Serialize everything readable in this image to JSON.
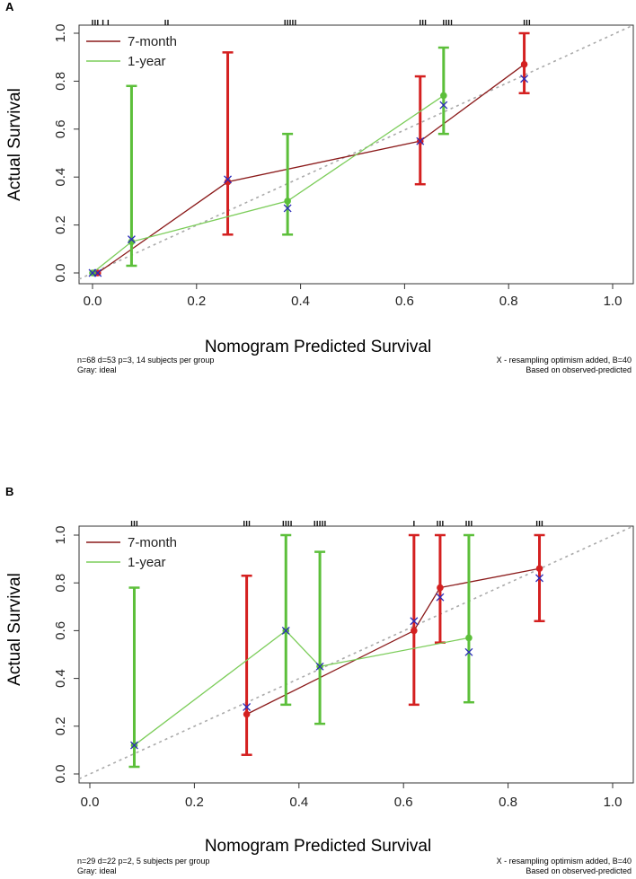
{
  "chart_data": [
    {
      "panel": "A",
      "type": "line",
      "xlabel": "Nomogram Predicted Survival",
      "ylabel": "Actual Survival",
      "xlim": [
        0.0,
        1.0
      ],
      "ylim": [
        0.0,
        1.0
      ],
      "xticks": [
        "0.0",
        "0.2",
        "0.4",
        "0.6",
        "0.8",
        "1.0"
      ],
      "yticks": [
        "0.0",
        "0.2",
        "0.4",
        "0.6",
        "0.8",
        "1.0"
      ],
      "legend": [
        "7-month",
        "1-year"
      ],
      "note_left": [
        "n=68 d=53 p=3, 14 subjects per group",
        "Gray: ideal"
      ],
      "note_right": [
        "X - resampling optimism added, B=40",
        "Based on observed-predicted"
      ],
      "rug_x": [
        0.0,
        0.005,
        0.01,
        0.02,
        0.03,
        0.14,
        0.145,
        0.37,
        0.375,
        0.38,
        0.385,
        0.39,
        0.63,
        0.635,
        0.64,
        0.675,
        0.68,
        0.685,
        0.69,
        0.83,
        0.835,
        0.84
      ],
      "series": [
        {
          "name": "7-month",
          "color": "#8b1a1a",
          "errcolor": "#d42020",
          "points": [
            {
              "x": 0.01,
              "y": 0.0,
              "lo": 0.0,
              "hi": 0.0,
              "adj": 0.0
            },
            {
              "x": 0.26,
              "y": 0.38,
              "lo": 0.16,
              "hi": 0.92,
              "adj": 0.39
            },
            {
              "x": 0.63,
              "y": 0.55,
              "lo": 0.37,
              "hi": 0.82,
              "adj": 0.55
            },
            {
              "x": 0.83,
              "y": 0.87,
              "lo": 0.75,
              "hi": 1.0,
              "adj": 0.81
            }
          ]
        },
        {
          "name": "1-year",
          "color": "#7ccd5a",
          "errcolor": "#5cbf3a",
          "points": [
            {
              "x": 0.0,
              "y": 0.0,
              "lo": 0.0,
              "hi": 0.0,
              "adj": 0.0
            },
            {
              "x": 0.075,
              "y": 0.13,
              "lo": 0.03,
              "hi": 0.78,
              "adj": 0.14
            },
            {
              "x": 0.375,
              "y": 0.3,
              "lo": 0.16,
              "hi": 0.58,
              "adj": 0.27
            },
            {
              "x": 0.675,
              "y": 0.74,
              "lo": 0.58,
              "hi": 0.94,
              "adj": 0.7
            }
          ]
        }
      ]
    },
    {
      "panel": "B",
      "type": "line",
      "xlabel": "Nomogram Predicted Survival",
      "ylabel": "Actual Survival",
      "xlim": [
        0.0,
        1.0
      ],
      "ylim": [
        0.0,
        1.0
      ],
      "xticks": [
        "0.0",
        "0.2",
        "0.4",
        "0.6",
        "0.8",
        "1.0"
      ],
      "yticks": [
        "0.0",
        "0.2",
        "0.4",
        "0.6",
        "0.8",
        "1.0"
      ],
      "legend": [
        "7-month",
        "1-year"
      ],
      "note_left": [
        "n=29 d=22 p=2, 5 subjects per group",
        "Gray: ideal"
      ],
      "note_right": [
        "X - resampling optimism added, B=40",
        "Based on observed-predicted"
      ],
      "rug_x": [
        0.08,
        0.085,
        0.09,
        0.295,
        0.3,
        0.305,
        0.37,
        0.375,
        0.38,
        0.385,
        0.43,
        0.435,
        0.44,
        0.445,
        0.45,
        0.62,
        0.665,
        0.67,
        0.675,
        0.72,
        0.725,
        0.73,
        0.855,
        0.86,
        0.865
      ],
      "series": [
        {
          "name": "7-month",
          "color": "#8b1a1a",
          "errcolor": "#d42020",
          "points": [
            {
              "x": 0.3,
              "y": 0.25,
              "lo": 0.08,
              "hi": 0.83,
              "adj": 0.28
            },
            {
              "x": 0.62,
              "y": 0.6,
              "lo": 0.29,
              "hi": 1.0,
              "adj": 0.64
            },
            {
              "x": 0.67,
              "y": 0.78,
              "lo": 0.55,
              "hi": 1.0,
              "adj": 0.74
            },
            {
              "x": 0.86,
              "y": 0.86,
              "lo": 0.64,
              "hi": 1.0,
              "adj": 0.82
            }
          ]
        },
        {
          "name": "1-year",
          "color": "#7ccd5a",
          "errcolor": "#5cbf3a",
          "points": [
            {
              "x": 0.085,
              "y": 0.12,
              "lo": 0.03,
              "hi": 0.78,
              "adj": 0.12
            },
            {
              "x": 0.375,
              "y": 0.6,
              "lo": 0.29,
              "hi": 1.0,
              "adj": 0.6
            },
            {
              "x": 0.44,
              "y": 0.45,
              "lo": 0.21,
              "hi": 0.93,
              "adj": 0.45
            },
            {
              "x": 0.725,
              "y": 0.57,
              "lo": 0.3,
              "hi": 1.0,
              "adj": 0.51
            }
          ]
        }
      ]
    }
  ]
}
